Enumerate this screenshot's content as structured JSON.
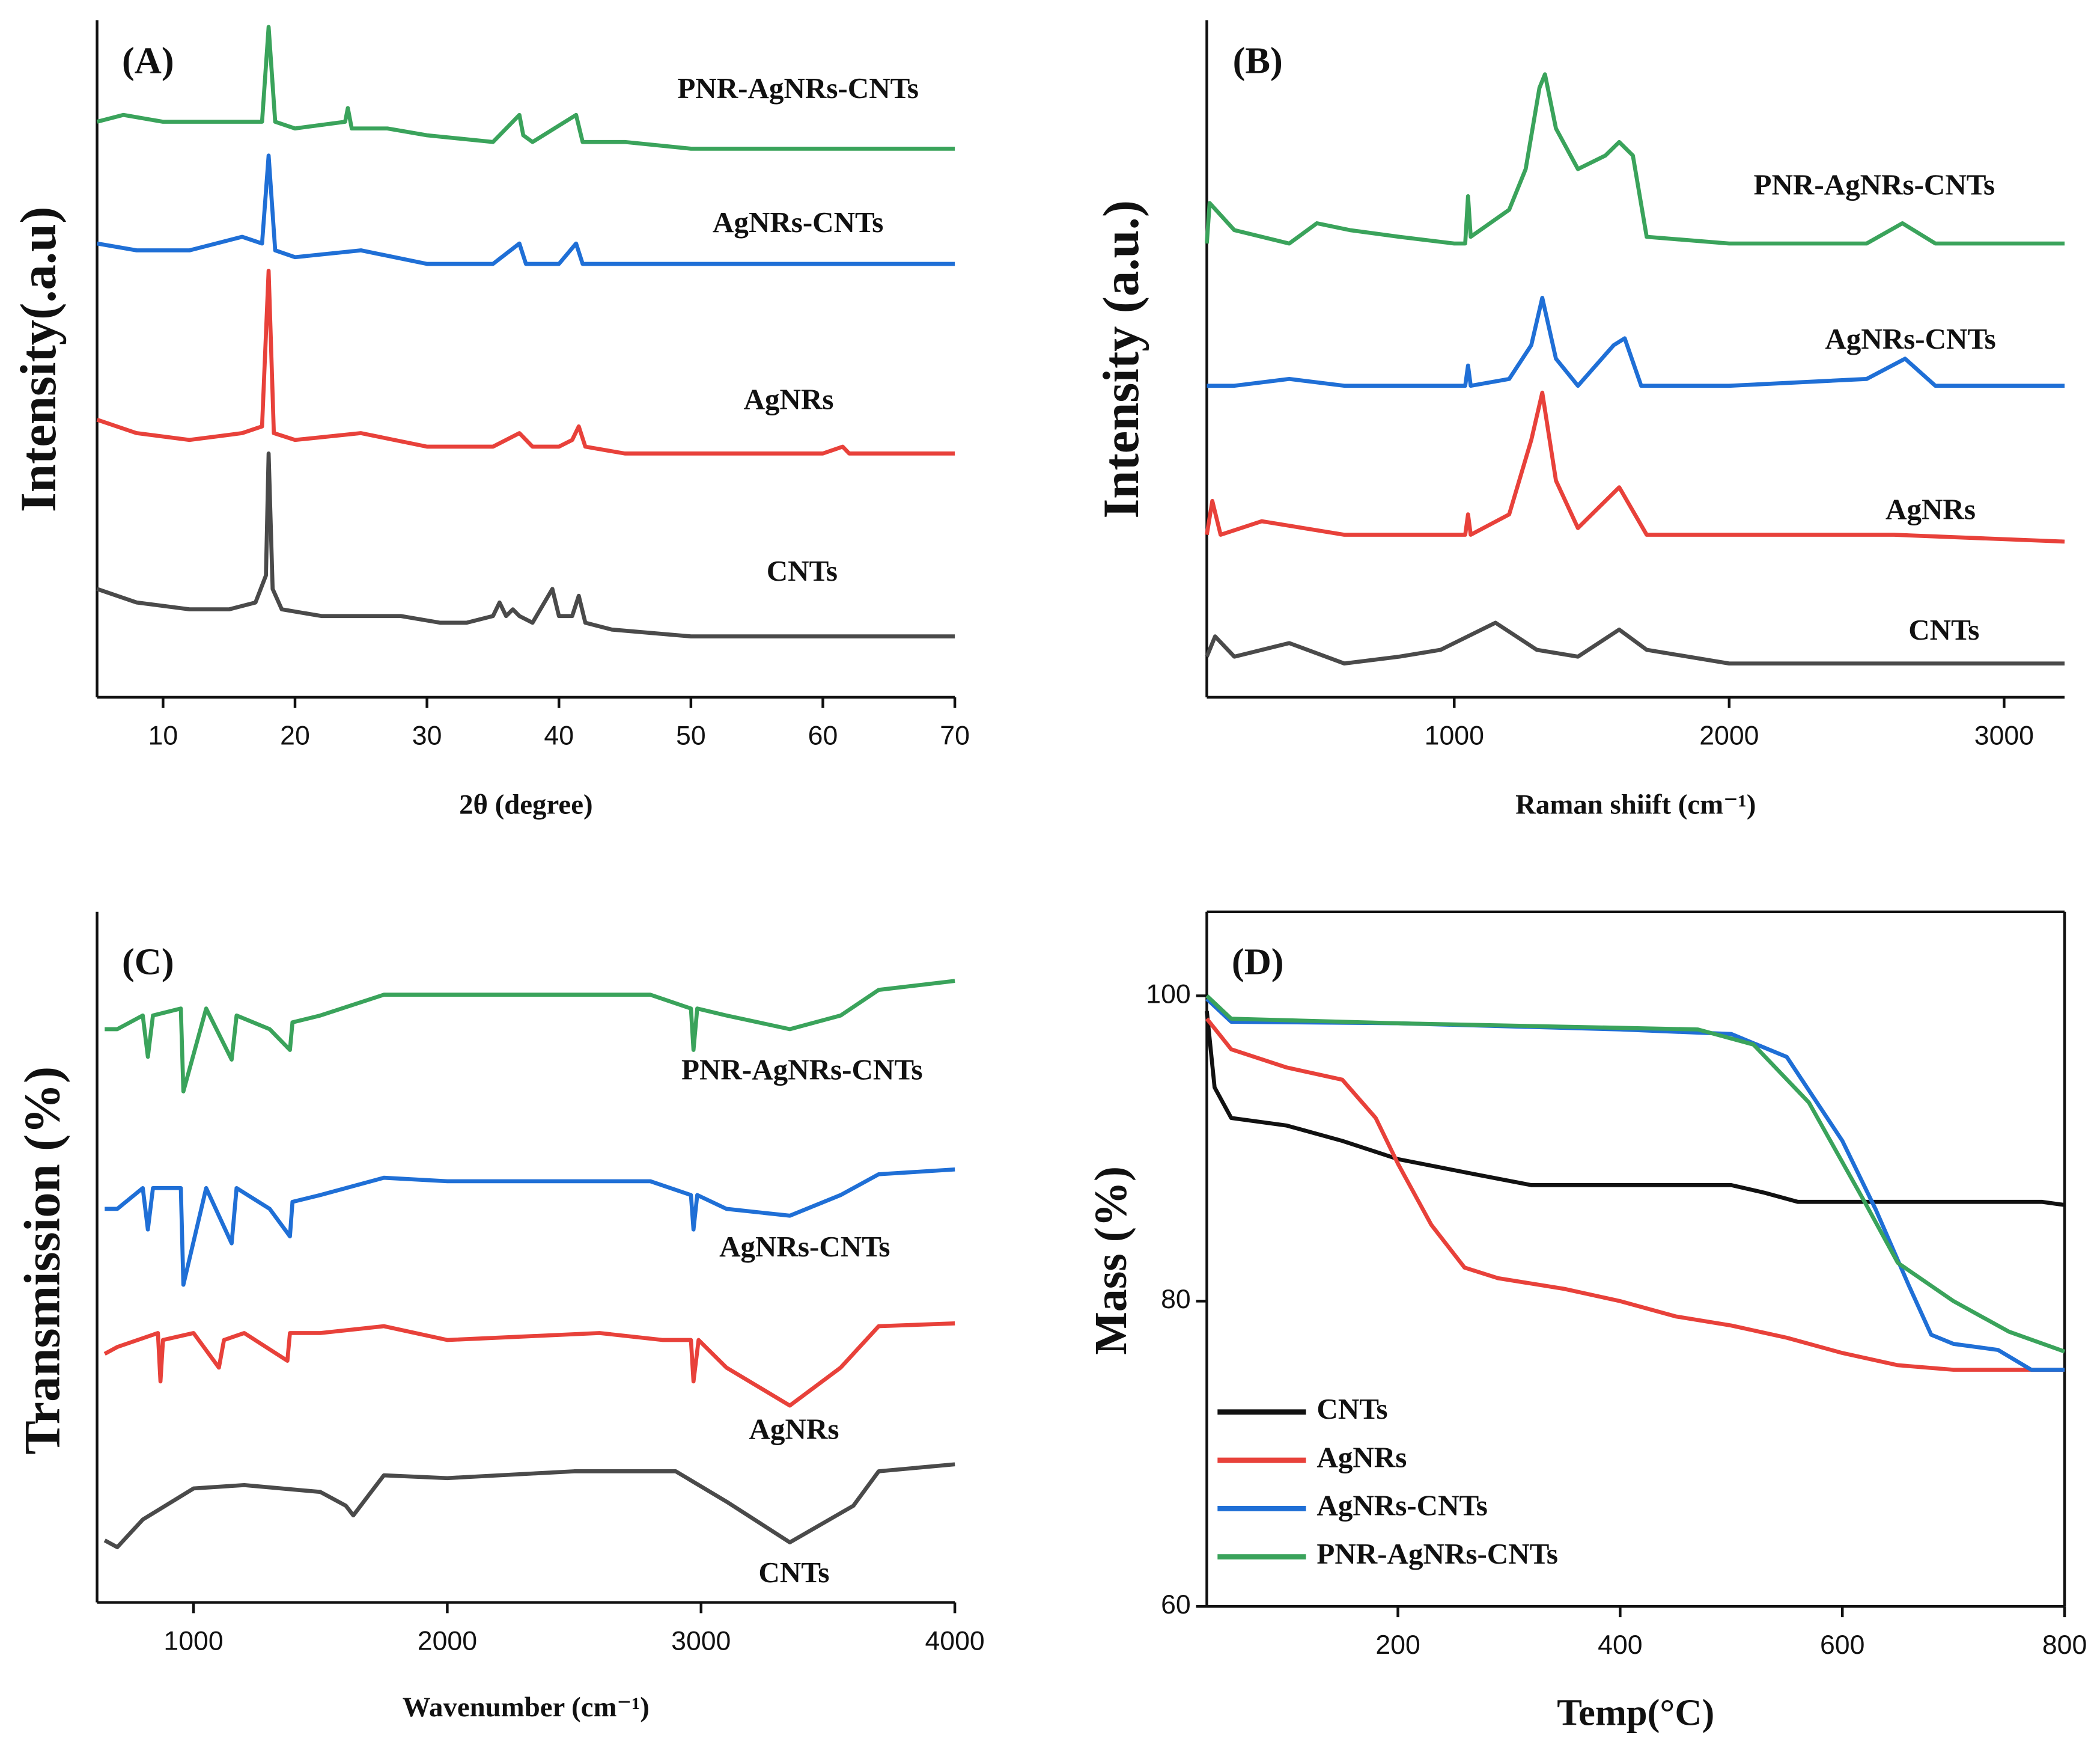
{
  "chart_data": [
    {
      "type": "line",
      "panel_label": "(A)",
      "x_label": "2θ (degree)",
      "y_label": "Intensity(.a.u)",
      "xlim": [
        5,
        70
      ],
      "ylim": [
        0,
        100
      ],
      "xticks": [
        10,
        20,
        30,
        40,
        50,
        60,
        70
      ],
      "series": [
        {
          "name": "CNTs",
          "color": "#4a4a4a",
          "x": [
            5,
            8,
            12,
            15,
            17,
            17.8,
            18,
            18.3,
            19,
            22,
            25,
            28,
            31,
            33,
            35,
            35.5,
            36,
            36.5,
            37,
            38,
            39.5,
            40,
            41,
            41.5,
            42,
            44,
            50,
            60,
            70
          ],
          "values": [
            16,
            14,
            13,
            13,
            14,
            18,
            36,
            16,
            13,
            12,
            12,
            12,
            11,
            11,
            12,
            14,
            12,
            13,
            12,
            11,
            16,
            12,
            12,
            15,
            11,
            10,
            9,
            9,
            9
          ]
        },
        {
          "name": "AgNRs",
          "color": "#e8413a",
          "x": [
            5,
            8,
            12,
            16,
            17.5,
            18,
            18.4,
            20,
            25,
            30,
            35,
            37,
            38,
            40,
            41,
            41.5,
            42,
            45,
            50,
            60,
            61.5,
            62,
            65,
            70
          ],
          "values": [
            41,
            39,
            38,
            39,
            40,
            63,
            39,
            38,
            39,
            37,
            37,
            39,
            37,
            37,
            38,
            40,
            37,
            36,
            36,
            36,
            37,
            36,
            36,
            36
          ]
        },
        {
          "name": "AgNRs-CNTs",
          "color": "#1f6fd6",
          "x": [
            5,
            8,
            12,
            16,
            17.5,
            18,
            18.5,
            20,
            25,
            30,
            35,
            37,
            37.5,
            38,
            40,
            41.3,
            41.8,
            45,
            50,
            55,
            60,
            70
          ],
          "values": [
            67,
            66,
            66,
            68,
            67,
            80,
            66,
            65,
            66,
            64,
            64,
            67,
            64,
            64,
            64,
            67,
            64,
            64,
            64,
            64,
            64,
            64
          ]
        },
        {
          "name": "PNR-AgNRs-CNTs",
          "color": "#3aa35b",
          "x": [
            5,
            7,
            10,
            15,
            17.5,
            18,
            18.5,
            20,
            23.8,
            24,
            24.3,
            27,
            30,
            35,
            37,
            37.3,
            38,
            41.3,
            41.8,
            45,
            50,
            55,
            60,
            70
          ],
          "values": [
            85,
            86,
            85,
            85,
            85,
            99,
            85,
            84,
            85,
            87,
            84,
            84,
            83,
            82,
            86,
            83,
            82,
            86,
            82,
            82,
            81,
            81,
            81,
            81
          ]
        }
      ]
    },
    {
      "type": "line",
      "panel_label": "(B)",
      "x_label": "Raman shiift (cm⁻¹)",
      "y_label": "Intensity (a.u.)",
      "xlim": [
        100,
        3220
      ],
      "ylim": [
        0,
        100
      ],
      "xticks": [
        1000,
        2000,
        3000
      ],
      "series": [
        {
          "name": "CNTs",
          "color": "#4a4a4a",
          "x": [
            100,
            130,
            200,
            400,
            600,
            800,
            950,
            1150,
            1300,
            1450,
            1600,
            1700,
            1850,
            2000,
            2500,
            3000,
            3220
          ],
          "values": [
            6,
            9,
            6,
            8,
            5,
            6,
            7,
            11,
            7,
            6,
            10,
            7,
            6,
            5,
            5,
            5,
            5
          ]
        },
        {
          "name": "AgNRs",
          "color": "#e8413a",
          "x": [
            100,
            120,
            150,
            300,
            600,
            900,
            1040,
            1050,
            1060,
            1200,
            1280,
            1320,
            1370,
            1450,
            1600,
            1700,
            2000,
            2600,
            3220
          ],
          "values": [
            24,
            29,
            24,
            26,
            24,
            24,
            24,
            27,
            24,
            27,
            38,
            45,
            32,
            25,
            31,
            24,
            24,
            24,
            23
          ]
        },
        {
          "name": "AgNRs-CNTs",
          "color": "#1f6fd6",
          "x": [
            100,
            200,
            400,
            600,
            900,
            1040,
            1050,
            1060,
            1200,
            1280,
            1320,
            1370,
            1450,
            1580,
            1620,
            1680,
            2000,
            2500,
            2640,
            2750,
            3220
          ],
          "values": [
            46,
            46,
            47,
            46,
            46,
            46,
            49,
            46,
            47,
            52,
            59,
            50,
            46,
            52,
            53,
            46,
            46,
            47,
            50,
            46,
            46
          ]
        },
        {
          "name": "PNR-AgNRs-CNTs",
          "color": "#3aa35b",
          "x": [
            100,
            110,
            200,
            400,
            500,
            620,
            800,
            1000,
            1040,
            1050,
            1060,
            1200,
            1260,
            1310,
            1330,
            1370,
            1450,
            1550,
            1600,
            1650,
            1700,
            2000,
            2500,
            2630,
            2750,
            3220
          ],
          "values": [
            67,
            73,
            69,
            67,
            70,
            69,
            68,
            67,
            67,
            74,
            68,
            72,
            78,
            90,
            92,
            84,
            78,
            80,
            82,
            80,
            68,
            67,
            67,
            70,
            67,
            67
          ]
        }
      ]
    },
    {
      "type": "line",
      "panel_label": "(C)",
      "x_label": "Wavenumber (cm⁻¹)",
      "y_label": "Transmission (%)",
      "xlim": [
        620,
        4000
      ],
      "ylim": [
        0,
        100
      ],
      "xticks": [
        1000,
        2000,
        3000,
        4000
      ],
      "series": [
        {
          "name": "CNTs",
          "color": "#4a4a4a",
          "x": [
            650,
            700,
            800,
            1000,
            1200,
            1500,
            1600,
            1630,
            1700,
            1750,
            2000,
            2500,
            2900,
            3100,
            3350,
            3600,
            3700,
            4000
          ],
          "values": [
            9,
            8,
            12,
            16.5,
            17,
            16,
            14,
            12.6,
            16,
            18.4,
            18,
            19,
            19,
            14.6,
            8.7,
            14,
            19,
            20
          ]
        },
        {
          "name": "AgNRs",
          "color": "#e8413a",
          "x": [
            650,
            700,
            860,
            870,
            880,
            1000,
            1100,
            1120,
            1200,
            1370,
            1380,
            1500,
            1750,
            2000,
            2600,
            2850,
            2960,
            2970,
            2990,
            3100,
            3350,
            3550,
            3700,
            4000
          ],
          "values": [
            36,
            37,
            39,
            32,
            38,
            39,
            34,
            38,
            39,
            35,
            39,
            39,
            40,
            38,
            39,
            38,
            38,
            32,
            38,
            34,
            28.5,
            34,
            40,
            40.4
          ]
        },
        {
          "name": "AgNRs-CNTs",
          "color": "#1f6fd6",
          "x": [
            650,
            700,
            800,
            820,
            840,
            950,
            960,
            1050,
            1150,
            1170,
            1300,
            1380,
            1390,
            1500,
            1750,
            2000,
            2800,
            2960,
            2970,
            2985,
            3100,
            3350,
            3550,
            3700,
            4000
          ],
          "values": [
            57,
            57,
            60,
            54,
            60,
            60,
            46,
            60,
            52,
            60,
            57,
            53,
            58,
            59,
            61.5,
            61,
            61,
            59,
            54,
            59,
            57,
            56,
            59,
            62,
            62.7
          ]
        },
        {
          "name": "PNR-AgNRs-CNTs",
          "color": "#3aa35b",
          "x": [
            650,
            700,
            800,
            820,
            840,
            950,
            960,
            1050,
            1150,
            1170,
            1300,
            1380,
            1390,
            1500,
            1750,
            2000,
            2800,
            2960,
            2970,
            2985,
            3100,
            3350,
            3550,
            3700,
            4000
          ],
          "values": [
            83,
            83,
            85,
            79,
            85,
            86,
            74,
            86,
            78.6,
            85,
            83,
            80,
            84,
            85,
            88,
            88,
            88,
            86,
            80,
            86,
            85,
            83,
            85,
            88.7,
            90
          ]
        }
      ]
    },
    {
      "type": "line",
      "panel_label": "(D)",
      "x_label": "Temp(°C)",
      "y_label": "Mass (%)",
      "xlim": [
        28,
        800
      ],
      "ylim": [
        60,
        105.5
      ],
      "xticks": [
        200,
        400,
        600,
        800
      ],
      "yticks": [
        60,
        80,
        100
      ],
      "legend": "lower left",
      "series": [
        {
          "name": "CNTs",
          "color": "#111111",
          "x": [
            28,
            35,
            50,
            100,
            150,
            200,
            270,
            320,
            400,
            500,
            530,
            560,
            700,
            780,
            800
          ],
          "values": [
            99,
            94,
            92,
            91.5,
            90.5,
            89.3,
            88.3,
            87.6,
            87.6,
            87.6,
            87.1,
            86.5,
            86.5,
            86.5,
            86.3
          ]
        },
        {
          "name": "AgNRs",
          "color": "#e8413a",
          "x": [
            28,
            50,
            100,
            150,
            180,
            200,
            230,
            260,
            290,
            350,
            400,
            450,
            500,
            550,
            600,
            650,
            700,
            800
          ],
          "values": [
            98.5,
            96.5,
            95.3,
            94.5,
            92,
            89,
            85,
            82.2,
            81.5,
            80.8,
            80,
            79,
            78.4,
            77.6,
            76.6,
            75.8,
            75.5,
            75.5
          ]
        },
        {
          "name": "AgNRs-CNTs",
          "color": "#1f6fd6",
          "x": [
            28,
            50,
            200,
            400,
            500,
            550,
            600,
            630,
            660,
            680,
            700,
            740,
            770,
            800
          ],
          "values": [
            99.8,
            98.3,
            98.2,
            97.8,
            97.5,
            96,
            90.5,
            86,
            81,
            77.8,
            77.2,
            76.8,
            75.5,
            75.5
          ]
        },
        {
          "name": "PNR-AgNRs-CNTs",
          "color": "#3aa35b",
          "x": [
            28,
            50,
            200,
            400,
            470,
            520,
            570,
            620,
            650,
            700,
            750,
            800
          ],
          "values": [
            100,
            98.5,
            98.2,
            97.9,
            97.8,
            96.8,
            93,
            86.5,
            82.5,
            80,
            78,
            76.7
          ]
        }
      ]
    }
  ]
}
